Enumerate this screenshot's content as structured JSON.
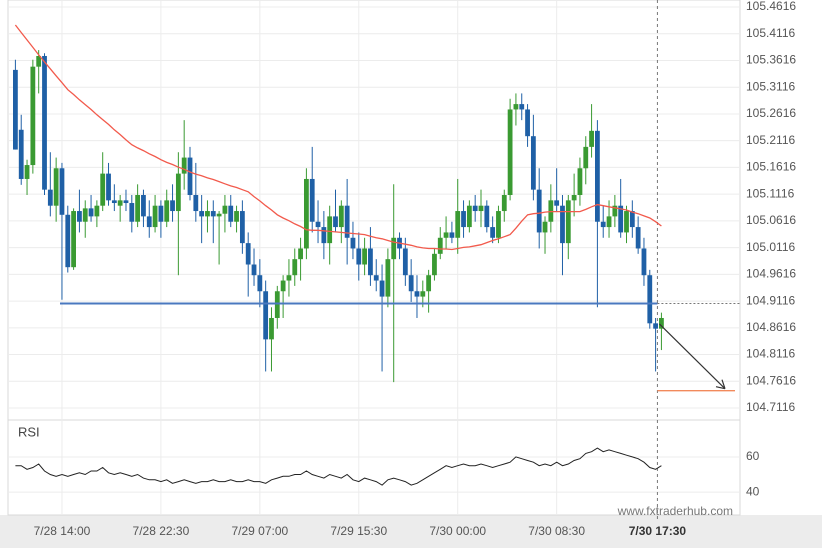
{
  "chart_data": {
    "type": "candlestick",
    "categories": [
      null,
      null,
      null,
      null,
      null,
      null,
      null,
      null,
      "7/28 14:00",
      null,
      null,
      null,
      null,
      null,
      null,
      null,
      null,
      null,
      null,
      null,
      null,
      null,
      null,
      null,
      null,
      "7/28 22:30",
      null,
      null,
      null,
      null,
      null,
      null,
      null,
      null,
      null,
      null,
      null,
      null,
      null,
      null,
      null,
      null,
      "7/29 07:00",
      null,
      null,
      null,
      null,
      null,
      null,
      null,
      null,
      null,
      null,
      null,
      null,
      null,
      null,
      null,
      null,
      "7/29 15:30",
      null,
      null,
      null,
      null,
      null,
      null,
      null,
      null,
      null,
      null,
      null,
      null,
      null,
      null,
      null,
      null,
      "7/30 00:00",
      null,
      null,
      null,
      null,
      null,
      null,
      null,
      null,
      null,
      null,
      null,
      null,
      null,
      null,
      null,
      null,
      "7/30 08:30",
      null,
      null,
      null,
      null,
      null,
      null,
      null,
      null,
      null,
      null,
      null,
      null,
      null,
      null,
      null,
      null,
      null,
      "7/30 17:30"
    ],
    "ohlc": [
      [
        105.344,
        105.363,
        105.195,
        105.195
      ],
      [
        105.232,
        105.26,
        105.129,
        105.14
      ],
      [
        105.14,
        105.176,
        105.11,
        105.166
      ],
      [
        105.166,
        105.363,
        105.15,
        105.35
      ],
      [
        105.35,
        105.381,
        105.3,
        105.37
      ],
      [
        105.37,
        105.375,
        105.11,
        105.12
      ],
      [
        105.12,
        105.19,
        105.07,
        105.09
      ],
      [
        105.09,
        105.18,
        105.06,
        105.16
      ],
      [
        105.16,
        105.17,
        104.914,
        105.073
      ],
      [
        105.073,
        105.09,
        104.965,
        104.975
      ],
      [
        104.975,
        105.085,
        104.97,
        105.08
      ],
      [
        105.08,
        105.12,
        105.04,
        105.06
      ],
      [
        105.06,
        105.1,
        105.03,
        105.085
      ],
      [
        105.085,
        105.11,
        105.06,
        105.07
      ],
      [
        105.07,
        105.1,
        105.05,
        105.09
      ],
      [
        105.09,
        105.19,
        105.08,
        105.15
      ],
      [
        105.15,
        105.17,
        105.09,
        105.1
      ],
      [
        105.1,
        105.13,
        105.08,
        105.095
      ],
      [
        105.09,
        105.11,
        105.06,
        105.1
      ],
      [
        105.1,
        105.12,
        105.08,
        105.095
      ],
      [
        105.095,
        105.11,
        105.04,
        105.06
      ],
      [
        105.06,
        105.13,
        105.05,
        105.11
      ],
      [
        105.11,
        105.12,
        105.05,
        105.07
      ],
      [
        105.07,
        105.1,
        105.03,
        105.05
      ],
      [
        105.05,
        105.11,
        105.04,
        105.09
      ],
      [
        105.09,
        105.1,
        105.03,
        105.06
      ],
      [
        105.06,
        105.12,
        105.05,
        105.1
      ],
      [
        105.1,
        105.13,
        105.06,
        105.08
      ],
      [
        105.08,
        105.19,
        104.96,
        105.15
      ],
      [
        105.15,
        105.25,
        105.12,
        105.18
      ],
      [
        105.18,
        105.2,
        105.1,
        105.11
      ],
      [
        105.11,
        105.17,
        105.06,
        105.08
      ],
      [
        105.08,
        105.11,
        105.02,
        105.07
      ],
      [
        105.07,
        105.1,
        105.04,
        105.08
      ],
      [
        105.08,
        105.1,
        105.02,
        105.07
      ],
      [
        105.07,
        105.08,
        104.98,
        105.075
      ],
      [
        105.075,
        105.11,
        105.04,
        105.09
      ],
      [
        105.09,
        105.11,
        105.05,
        105.06
      ],
      [
        105.06,
        105.09,
        105.04,
        105.08
      ],
      [
        105.08,
        105.1,
        105.0,
        105.02
      ],
      [
        105.02,
        105.04,
        104.92,
        104.98
      ],
      [
        104.98,
        105.01,
        104.94,
        104.96
      ],
      [
        104.96,
        104.99,
        104.9,
        104.93
      ],
      [
        104.93,
        104.95,
        104.78,
        104.84
      ],
      [
        104.84,
        104.9,
        104.78,
        104.88
      ],
      [
        104.88,
        104.94,
        104.86,
        104.93
      ],
      [
        104.93,
        104.96,
        104.88,
        104.95
      ],
      [
        104.95,
        104.99,
        104.92,
        104.96
      ],
      [
        104.96,
        105.01,
        104.94,
        104.99
      ],
      [
        104.99,
        105.03,
        104.95,
        105.01
      ],
      [
        105.01,
        105.16,
        104.99,
        105.14
      ],
      [
        105.14,
        105.2,
        105.04,
        105.06
      ],
      [
        105.06,
        105.1,
        105.02,
        105.05
      ],
      [
        105.05,
        105.08,
        104.99,
        105.02
      ],
      [
        105.02,
        105.09,
        104.98,
        105.07
      ],
      [
        105.07,
        105.12,
        105.04,
        105.05
      ],
      [
        105.05,
        105.1,
        105.02,
        105.09
      ],
      [
        105.09,
        105.14,
        104.98,
        105.03
      ],
      [
        105.03,
        105.06,
        104.99,
        105.01
      ],
      [
        105.01,
        105.04,
        104.95,
        104.98
      ],
      [
        104.98,
        105.03,
        104.96,
        105.01
      ],
      [
        105.01,
        105.05,
        104.94,
        104.96
      ],
      [
        104.96,
        104.99,
        104.93,
        104.95
      ],
      [
        104.95,
        104.98,
        104.78,
        104.92
      ],
      [
        104.92,
        105.01,
        104.9,
        104.99
      ],
      [
        104.99,
        105.13,
        104.76,
        105.03
      ],
      [
        105.03,
        105.04,
        104.99,
        105.01
      ],
      [
        105.01,
        105.03,
        104.94,
        104.96
      ],
      [
        104.96,
        104.99,
        104.91,
        104.93
      ],
      [
        104.93,
        104.96,
        104.88,
        104.92
      ],
      [
        104.92,
        104.95,
        104.9,
        104.93
      ],
      [
        104.93,
        104.97,
        104.89,
        104.96
      ],
      [
        104.96,
        105.01,
        104.95,
        105.0
      ],
      [
        105.0,
        105.05,
        104.99,
        105.03
      ],
      [
        105.03,
        105.07,
        105.01,
        105.04
      ],
      [
        105.04,
        105.06,
        105.02,
        105.03
      ],
      [
        105.03,
        105.14,
        105.0,
        105.08
      ],
      [
        105.08,
        105.1,
        105.03,
        105.05
      ],
      [
        105.05,
        105.1,
        105.04,
        105.09
      ],
      [
        105.09,
        105.11,
        105.06,
        105.08
      ],
      [
        105.08,
        105.12,
        105.05,
        105.09
      ],
      [
        105.09,
        105.1,
        105.04,
        105.05
      ],
      [
        105.05,
        105.07,
        105.02,
        105.03
      ],
      [
        105.03,
        105.09,
        105.02,
        105.08
      ],
      [
        105.08,
        105.12,
        105.06,
        105.11
      ],
      [
        105.11,
        105.29,
        105.1,
        105.27
      ],
      [
        105.27,
        105.3,
        105.24,
        105.28
      ],
      [
        105.28,
        105.3,
        105.25,
        105.27
      ],
      [
        105.27,
        105.28,
        105.2,
        105.22
      ],
      [
        105.22,
        105.26,
        105.1,
        105.12
      ],
      [
        105.12,
        105.16,
        105.01,
        105.04
      ],
      [
        105.04,
        105.07,
        105.0,
        105.06
      ],
      [
        105.06,
        105.13,
        105.04,
        105.1
      ],
      [
        105.1,
        105.16,
        105.08,
        105.09
      ],
      [
        105.09,
        105.11,
        104.96,
        105.02
      ],
      [
        105.02,
        105.11,
        104.99,
        105.1
      ],
      [
        105.1,
        105.15,
        105.07,
        105.11
      ],
      [
        105.11,
        105.18,
        105.09,
        105.16
      ],
      [
        105.16,
        105.22,
        105.13,
        105.2
      ],
      [
        105.2,
        105.28,
        105.18,
        105.23
      ],
      [
        105.23,
        105.25,
        104.9,
        105.06
      ],
      [
        105.06,
        105.09,
        105.03,
        105.05
      ],
      [
        105.05,
        105.1,
        105.03,
        105.07
      ],
      [
        105.07,
        105.11,
        105.05,
        105.09
      ],
      [
        105.09,
        105.14,
        105.03,
        105.04
      ],
      [
        105.04,
        105.09,
        105.02,
        105.08
      ],
      [
        105.08,
        105.1,
        105.03,
        105.05
      ],
      [
        105.05,
        105.07,
        105.0,
        105.01
      ],
      [
        105.01,
        105.03,
        104.94,
        104.96
      ],
      [
        104.96,
        104.97,
        104.86,
        104.87
      ],
      [
        104.87,
        104.88,
        104.78,
        104.86
      ],
      [
        104.86,
        104.89,
        104.82,
        104.88
      ]
    ],
    "up_color": "#3a9a32",
    "down_color": "#1f60a6",
    "ma": [
      105.428,
      105.414,
      105.4,
      105.386,
      105.372,
      105.359,
      105.346,
      105.333,
      105.32,
      105.307,
      105.298,
      105.288,
      105.279,
      105.27,
      105.26,
      105.251,
      105.242,
      105.232,
      105.223,
      105.213,
      105.204,
      105.198,
      105.193,
      105.187,
      105.182,
      105.176,
      105.171,
      105.167,
      105.162,
      105.158,
      105.153,
      105.149,
      105.146,
      105.142,
      105.139,
      105.135,
      105.131,
      105.127,
      105.124,
      105.12,
      105.116,
      105.107,
      105.099,
      105.09,
      105.082,
      105.073,
      105.067,
      105.062,
      105.056,
      105.051,
      105.045,
      105.044,
      105.044,
      105.043,
      105.042,
      105.041,
      105.04,
      105.039,
      105.038,
      105.037,
      105.036,
      105.033,
      105.03,
      105.028,
      105.025,
      105.022,
      105.02,
      105.018,
      105.016,
      105.013,
      105.011,
      105.01,
      105.01,
      105.009,
      105.009,
      105.008,
      105.01,
      105.012,
      105.013,
      105.015,
      105.017,
      105.021,
      105.025,
      105.028,
      105.032,
      105.036,
      105.048,
      105.061,
      105.073,
      105.075,
      105.076,
      105.078,
      105.079,
      105.079,
      105.079,
      105.079,
      105.079,
      105.079,
      105.083,
      105.088,
      105.092,
      105.09,
      105.088,
      105.086,
      105.084,
      105.082,
      105.078,
      105.075,
      105.071,
      105.067,
      105.06,
      105.052
    ],
    "ma_color": "#f25a4c",
    "support_level": 104.907,
    "support_color": "#4a78bf",
    "target_level": 104.744,
    "target_color": "#f28a5c",
    "ylim": [
      104.6892,
      105.4747
    ],
    "yticks": [
      105.4616,
      105.4116,
      105.3616,
      105.3116,
      105.2616,
      105.2116,
      105.1616,
      105.1116,
      105.0616,
      105.0116,
      104.9616,
      104.9116,
      104.8616,
      104.8116,
      104.7616,
      104.7116
    ],
    "grid": true,
    "rsi": {
      "label": "RSI",
      "color": "#222222",
      "values": [
        55,
        55,
        53,
        54,
        56,
        52,
        50,
        49,
        50,
        49,
        50,
        51,
        50,
        52,
        52,
        54,
        51,
        50,
        51,
        50,
        49,
        50,
        48,
        47,
        47,
        46,
        47,
        45,
        46,
        47,
        46,
        45,
        46,
        46,
        47,
        46,
        46,
        47,
        46,
        46,
        47,
        46,
        46,
        45,
        47,
        48,
        49,
        49,
        50,
        50,
        52,
        50,
        49,
        48,
        50,
        49,
        48,
        50,
        47,
        46,
        48,
        47,
        46,
        44,
        47,
        48,
        47,
        46,
        44,
        45,
        47,
        49,
        51,
        53,
        55,
        54,
        55,
        56,
        55,
        55,
        56,
        55,
        54,
        55,
        56,
        57,
        60,
        59,
        58,
        57,
        55,
        56,
        55,
        57,
        55,
        56,
        58,
        59,
        62,
        63,
        65,
        63,
        64,
        63,
        62,
        61,
        60,
        59,
        57,
        54,
        53,
        55
      ],
      "ylim": [
        27,
        81
      ],
      "yticks": [
        60,
        40
      ]
    },
    "watermark": "www.fxtraderhub.com"
  }
}
